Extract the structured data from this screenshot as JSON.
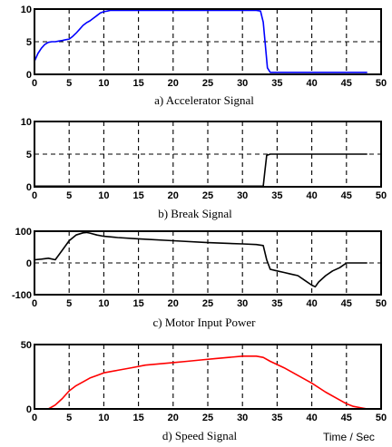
{
  "figure_note": "Time / Sec",
  "chart_data": [
    {
      "type": "line",
      "caption": "a) Accelerator Signal",
      "color": "#0000ff",
      "xlim": [
        0,
        50
      ],
      "ylim": [
        0,
        10
      ],
      "xticks": [
        0,
        5,
        10,
        15,
        20,
        25,
        30,
        35,
        40,
        45,
        50
      ],
      "yticks": [
        0,
        5,
        10
      ],
      "grid": true,
      "series": [
        {
          "x": [
            0,
            0.5,
            1,
            1.5,
            2,
            2.5,
            3,
            3.5,
            4,
            4.5,
            5,
            5.5,
            6,
            6.5,
            7,
            7.5,
            8,
            8.5,
            9,
            9.5,
            10,
            10.5,
            11,
            12,
            14,
            16,
            18,
            20,
            22,
            24,
            26,
            28,
            30,
            32,
            32.6,
            33,
            33.3,
            33.6,
            34,
            35,
            40,
            45,
            48
          ],
          "y": [
            2,
            3.2,
            4.0,
            4.6,
            4.9,
            5.0,
            5.0,
            5.1,
            5.2,
            5.3,
            5.4,
            5.8,
            6.3,
            6.9,
            7.5,
            7.9,
            8.2,
            8.6,
            9.0,
            9.4,
            9.6,
            9.7,
            9.8,
            9.8,
            9.8,
            9.8,
            9.8,
            9.8,
            9.8,
            9.8,
            9.8,
            9.8,
            9.8,
            9.8,
            9.7,
            8.0,
            4.5,
            1.0,
            0.3,
            0.3,
            0.3,
            0.3,
            0.3
          ]
        }
      ]
    },
    {
      "type": "line",
      "caption": "b) Break Signal",
      "color": "#000000",
      "xlim": [
        0,
        50
      ],
      "ylim": [
        0,
        10
      ],
      "xticks": [
        0,
        5,
        10,
        15,
        20,
        25,
        30,
        35,
        40,
        45,
        50
      ],
      "yticks": [
        0,
        5,
        10
      ],
      "grid": true,
      "series": [
        {
          "x": [
            0,
            10,
            20,
            30,
            33,
            33.2,
            33.5,
            34,
            40,
            48
          ],
          "y": [
            0.1,
            0.1,
            0.1,
            0.1,
            0.1,
            2.0,
            4.8,
            5.0,
            5.0,
            5.0
          ]
        }
      ]
    },
    {
      "type": "line",
      "caption": "c) Motor Input Power",
      "color": "#000000",
      "xlim": [
        0,
        50
      ],
      "ylim": [
        -100,
        100
      ],
      "xticks": [
        0,
        5,
        10,
        15,
        20,
        25,
        30,
        35,
        40,
        45,
        50
      ],
      "yticks": [
        -100,
        0,
        100
      ],
      "grid": true,
      "series": [
        {
          "x": [
            0,
            1,
            2,
            3,
            4,
            5,
            6,
            7,
            7.5,
            8,
            9,
            10,
            12,
            15,
            20,
            25,
            30,
            32,
            33,
            33.5,
            34,
            35,
            36,
            37,
            38,
            39,
            40,
            40.5,
            41,
            42,
            43,
            44,
            45,
            46,
            48
          ],
          "y": [
            10,
            12,
            15,
            10,
            40,
            70,
            88,
            95,
            96,
            94,
            88,
            84,
            80,
            76,
            70,
            64,
            60,
            58,
            55,
            10,
            -20,
            -25,
            -30,
            -35,
            -40,
            -55,
            -70,
            -75,
            -60,
            -40,
            -25,
            -15,
            0,
            0,
            0
          ]
        }
      ]
    },
    {
      "type": "line",
      "caption": "d) Speed Signal",
      "color": "#ff0000",
      "xlim": [
        0,
        50
      ],
      "ylim": [
        0,
        50
      ],
      "xticks": [
        0,
        5,
        10,
        15,
        20,
        25,
        30,
        35,
        40,
        45,
        50
      ],
      "yticks": [
        0,
        50
      ],
      "grid": true,
      "series": [
        {
          "x": [
            0,
            2,
            3,
            4,
            5,
            6,
            7,
            8,
            9,
            10,
            12,
            14,
            16,
            18,
            20,
            22,
            24,
            26,
            28,
            30,
            32,
            33,
            34,
            36,
            38,
            40,
            42,
            44,
            45,
            46,
            47,
            48,
            48.5
          ],
          "y": [
            0,
            0,
            3,
            8,
            14,
            18,
            21,
            24,
            26,
            28,
            30,
            32,
            34,
            35,
            36,
            37,
            38,
            39,
            40,
            41,
            41,
            40,
            37,
            32,
            26,
            20,
            13,
            7,
            4,
            2,
            1,
            0,
            0
          ]
        }
      ]
    }
  ]
}
